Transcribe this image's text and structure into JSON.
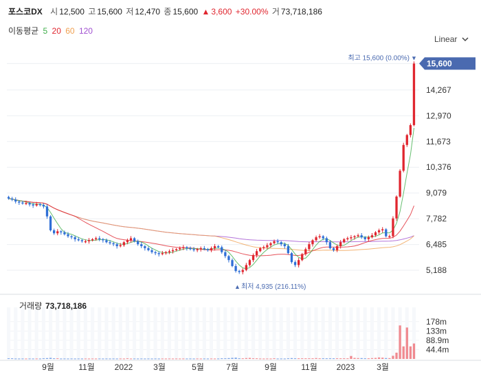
{
  "header": {
    "name": "포스코DX",
    "open_label": "시",
    "open": "12,500",
    "high_label": "고",
    "high": "15,600",
    "low_label": "저",
    "low": "12,470",
    "close_label": "종",
    "close": "15,600",
    "change_arrow": "▲",
    "change": "3,600",
    "change_pct": "+30.00%",
    "volume_label": "거",
    "volume": "73,718,186"
  },
  "ma_legend": {
    "label": "이동평균",
    "items": [
      {
        "period": "5",
        "color": "#3fae4a"
      },
      {
        "period": "20",
        "color": "#e0262f"
      },
      {
        "period": "60",
        "color": "#f0a050"
      },
      {
        "period": "120",
        "color": "#a050d0"
      }
    ]
  },
  "scale_selector": {
    "label": "Linear",
    "icon": "chevron-down-icon"
  },
  "colors": {
    "up": "#e0262f",
    "down": "#2f6fd6",
    "current_badge": "#4a6ab0"
  },
  "chart_data": {
    "type": "candlestick",
    "price_axis": {
      "ticks": [
        "5,188",
        "6,485",
        "7,782",
        "9,079",
        "10,376",
        "11,673",
        "12,970",
        "14,267"
      ],
      "current_label": "15,600",
      "range": [
        4600,
        16100
      ]
    },
    "volume_axis": {
      "label": "거래량",
      "value": "73,718,186",
      "ticks": [
        "178m",
        "133m",
        "88.9m",
        "44.4m"
      ],
      "range": [
        0,
        220
      ]
    },
    "x_labels": [
      "9월",
      "11월",
      "2022",
      "3월",
      "5월",
      "7월",
      "9월",
      "11월",
      "2023",
      "3월"
    ],
    "annotations": {
      "high": {
        "text": "최고 15,600 (0.00%)",
        "arrow": "▼"
      },
      "low": {
        "text": "최저 4,935 (216.11%)",
        "arrow": "▲"
      }
    },
    "close": [
      8800,
      8750,
      8650,
      8600,
      8550,
      8580,
      8500,
      8450,
      8520,
      8480,
      8400,
      7900,
      7200,
      7050,
      7150,
      7100,
      7000,
      6900,
      6850,
      6750,
      6700,
      6650,
      6650,
      6700,
      6750,
      6800,
      6750,
      6700,
      6600,
      6550,
      6500,
      6400,
      6450,
      6600,
      6700,
      6800,
      6650,
      6500,
      6400,
      6300,
      6200,
      6100,
      6050,
      6000,
      6050,
      6100,
      6150,
      6200,
      6250,
      6300,
      6350,
      6300,
      6250,
      6200,
      6250,
      6300,
      6250,
      6200,
      6300,
      6400,
      6350,
      6100,
      5900,
      5700,
      5400,
      5150,
      5100,
      5200,
      5450,
      5700,
      5950,
      6150,
      6300,
      6350,
      6450,
      6550,
      6650,
      6600,
      6500,
      6400,
      6050,
      5600,
      5450,
      5700,
      6000,
      6250,
      6500,
      6700,
      6850,
      6900,
      6800,
      6600,
      6300,
      6200,
      6400,
      6600,
      6750,
      6800,
      6850,
      6900,
      6950,
      6850,
      6750,
      6850,
      6950,
      7100,
      7200,
      7250,
      6900,
      6900,
      7800,
      8900,
      10200,
      11500,
      12000,
      12500,
      15600
    ],
    "volume_m": [
      3,
      3,
      2,
      2,
      2,
      2,
      2,
      2,
      2,
      2,
      3,
      4,
      5,
      3,
      3,
      2,
      2,
      2,
      2,
      2,
      2,
      2,
      2,
      2,
      2,
      2,
      2,
      2,
      2,
      2,
      2,
      2,
      2,
      2,
      3,
      2,
      2,
      2,
      2,
      2,
      2,
      2,
      2,
      2,
      2,
      2,
      2,
      2,
      2,
      2,
      2,
      2,
      2,
      2,
      2,
      2,
      2,
      2,
      2,
      2,
      2,
      3,
      3,
      4,
      5,
      6,
      3,
      3,
      4,
      5,
      3,
      3,
      2,
      2,
      2,
      2,
      3,
      2,
      2,
      2,
      3,
      4,
      3,
      3,
      3,
      3,
      3,
      3,
      4,
      3,
      3,
      3,
      3,
      3,
      3,
      3,
      3,
      3,
      14,
      5,
      4,
      4,
      3,
      3,
      4,
      5,
      7,
      6,
      4,
      4,
      15,
      30,
      160,
      60,
      150,
      60,
      73.7
    ]
  }
}
